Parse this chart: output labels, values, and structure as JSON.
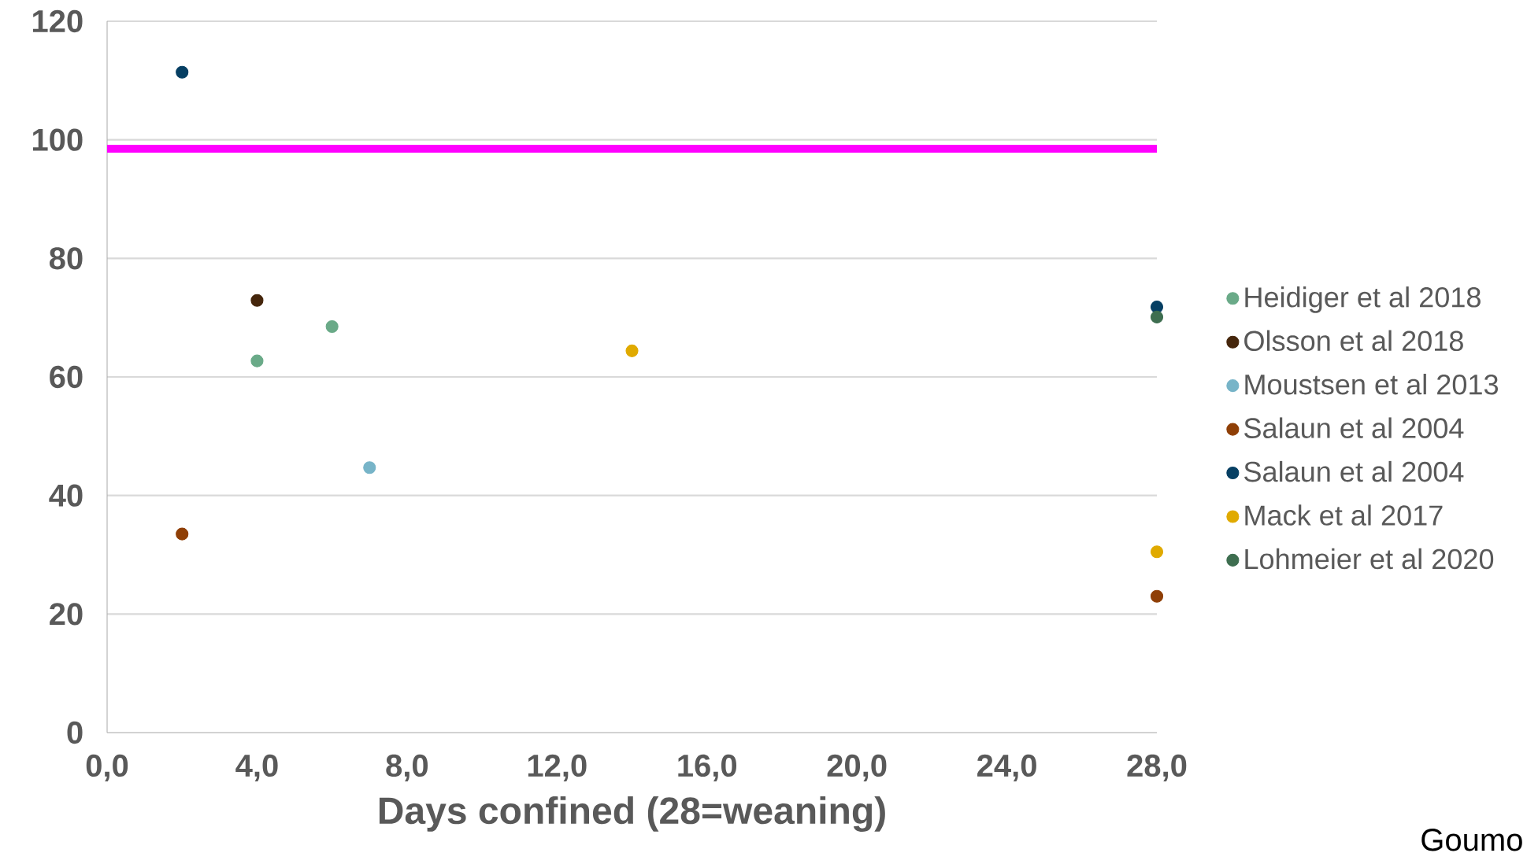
{
  "chart_data": {
    "type": "scatter",
    "xlabel": "Days confined (28=weaning)",
    "xlim": [
      0,
      28
    ],
    "ylim": [
      0,
      120
    ],
    "xticks": [
      {
        "value": 0,
        "label": "0,0"
      },
      {
        "value": 4,
        "label": "4,0"
      },
      {
        "value": 8,
        "label": "8,0"
      },
      {
        "value": 12,
        "label": "12,0"
      },
      {
        "value": 16,
        "label": "16,0"
      },
      {
        "value": 20,
        "label": "20,0"
      },
      {
        "value": 24,
        "label": "24,0"
      },
      {
        "value": 28,
        "label": "28,0"
      }
    ],
    "yticks": [
      0,
      20,
      40,
      60,
      80,
      100,
      120
    ],
    "grid": "y",
    "legend": "right",
    "marker": "circle",
    "series": [
      {
        "name": "Heidiger et al 2018",
        "color": "#6aaa88",
        "x": [
          4,
          6
        ],
        "values": [
          62.7,
          68.5
        ]
      },
      {
        "name": "Olsson et al 2018",
        "color": "#45260c",
        "x": [
          4
        ],
        "values": [
          72.9
        ]
      },
      {
        "name": "Moustsen et al 2013",
        "color": "#77b4c8",
        "x": [
          7
        ],
        "values": [
          44.7
        ]
      },
      {
        "name": "Salaun et al 2004",
        "color": "#8f3f06",
        "x": [
          2,
          28
        ],
        "values": [
          33.5,
          23.0
        ]
      },
      {
        "name": "Salaun et al 2004",
        "color": "#063f63",
        "x": [
          2,
          28
        ],
        "values": [
          111.4,
          71.8
        ]
      },
      {
        "name": "Mack et al 2017",
        "color": "#e0aa00",
        "x": [
          14,
          28
        ],
        "values": [
          64.4,
          30.5
        ]
      },
      {
        "name": "Lohmeier et al 2020",
        "color": "#3e6e50",
        "x": [
          28
        ],
        "values": [
          70.1
        ]
      }
    ],
    "ref_lines": [
      {
        "axis": "y",
        "value": 98.5,
        "color": "#ff00ff"
      }
    ],
    "annotations": [
      "Goumo"
    ]
  }
}
